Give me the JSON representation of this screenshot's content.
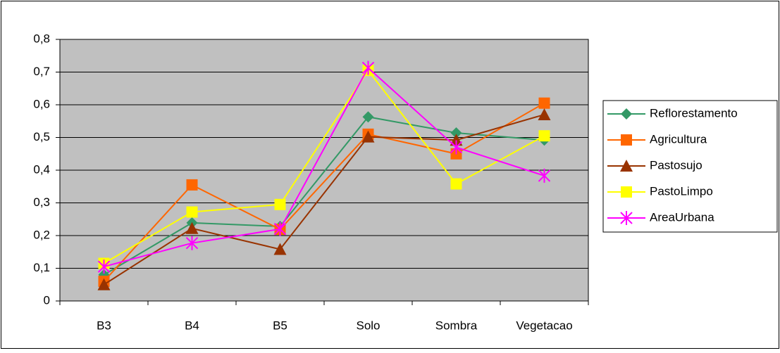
{
  "chart_data": {
    "type": "line",
    "categories": [
      "B3",
      "B4",
      "B5",
      "Solo",
      "Sombra",
      "Vegetacao"
    ],
    "series": [
      {
        "name": "Reflorestamento",
        "color": "#339966",
        "marker": "diamond",
        "values": [
          0.08,
          0.239,
          0.228,
          0.563,
          0.514,
          0.492
        ]
      },
      {
        "name": "Agricultura",
        "color": "#FF6600",
        "marker": "square",
        "values": [
          0.06,
          0.355,
          0.219,
          0.51,
          0.45,
          0.605
        ]
      },
      {
        "name": "Pastosujo",
        "color": "#993300",
        "marker": "triangle",
        "values": [
          0.05,
          0.222,
          0.158,
          0.502,
          0.492,
          0.57
        ]
      },
      {
        "name": "PastoLimpo",
        "color": "#FFFF00",
        "marker": "square",
        "values": [
          0.115,
          0.272,
          0.295,
          0.705,
          0.358,
          0.505
        ]
      },
      {
        "name": "AreaUrbana",
        "color": "#FF00FF",
        "marker": "asterisk",
        "values": [
          0.105,
          0.177,
          0.22,
          0.713,
          0.47,
          0.383
        ]
      }
    ],
    "ylim": [
      0,
      0.8
    ],
    "yticks": [
      0,
      {
        "value": 0.1,
        "label": "0,1"
      },
      {
        "value": 0.2,
        "label": "0,2"
      },
      {
        "value": 0.3,
        "label": "0,3"
      },
      {
        "value": 0.4,
        "label": "0,4"
      },
      {
        "value": 0.5,
        "label": "0,5"
      },
      {
        "value": 0.6,
        "label": "0,6"
      },
      {
        "value": 0.7,
        "label": "0,7"
      },
      {
        "value": 0.8,
        "label": "0,8"
      }
    ],
    "grid": true,
    "legend": "right",
    "plot_background": "#C0C0C0"
  }
}
